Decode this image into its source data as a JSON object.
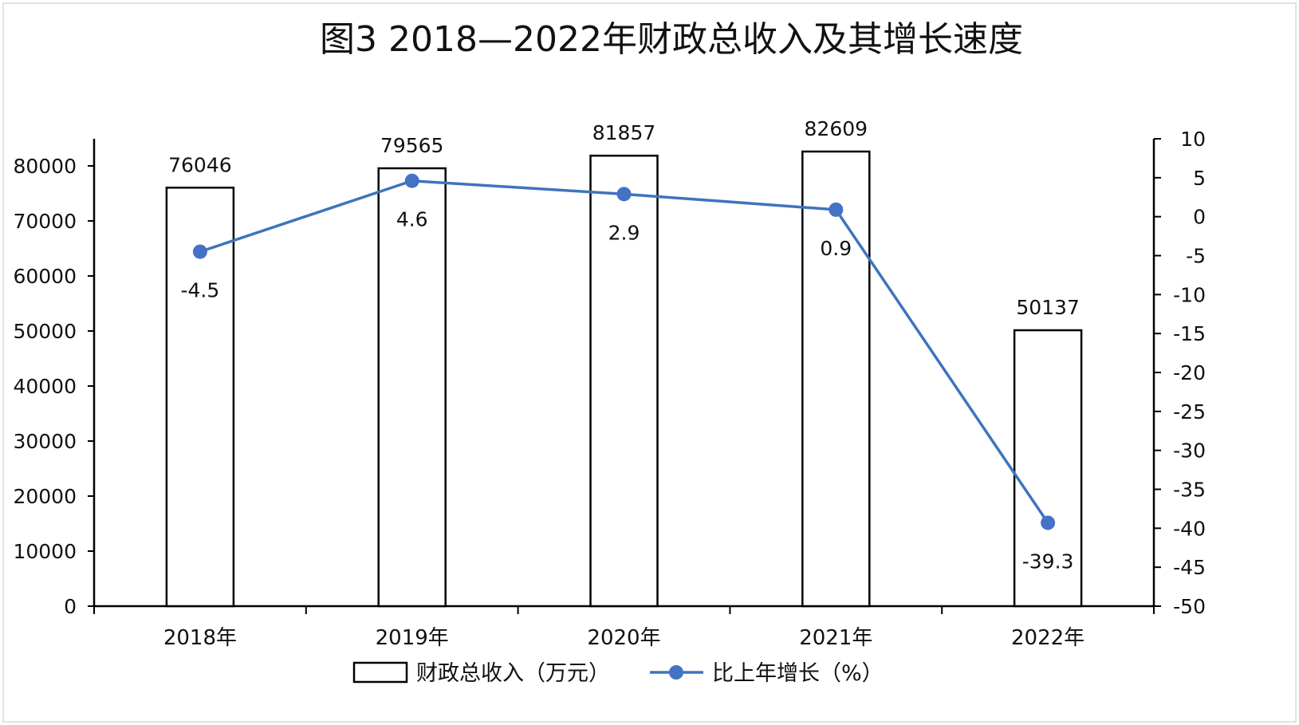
{
  "chart_data": {
    "type": "bar",
    "title": "图3  2018—2022年财政总收入及其增长速度",
    "categories": [
      "2018年",
      "2019年",
      "2020年",
      "2021年",
      "2022年"
    ],
    "series": [
      {
        "name": "财政总收入（万元）",
        "type": "bar",
        "axis": "left",
        "values": [
          76046,
          79565,
          81857,
          82609,
          50137
        ]
      },
      {
        "name": "比上年增长（%）",
        "type": "line",
        "axis": "right",
        "values": [
          -4.5,
          4.6,
          2.9,
          0.9,
          -39.3
        ]
      }
    ],
    "y_left": {
      "min": 0,
      "max": 80000,
      "step": 10000,
      "ticks": [
        "0",
        "10000",
        "20000",
        "30000",
        "40000",
        "50000",
        "60000",
        "70000",
        "80000"
      ]
    },
    "y_right": {
      "min": -50,
      "max": 10,
      "step": 5,
      "ticks": [
        "-50",
        "-45",
        "-40",
        "-35",
        "-30",
        "-25",
        "-20",
        "-15",
        "-10",
        "-5",
        "0",
        "5",
        "10"
      ]
    },
    "grid": false,
    "legend_position": "bottom",
    "colors": {
      "bar_fill": "#ffffff",
      "bar_stroke": "#000000",
      "line": "#4472c4"
    }
  }
}
